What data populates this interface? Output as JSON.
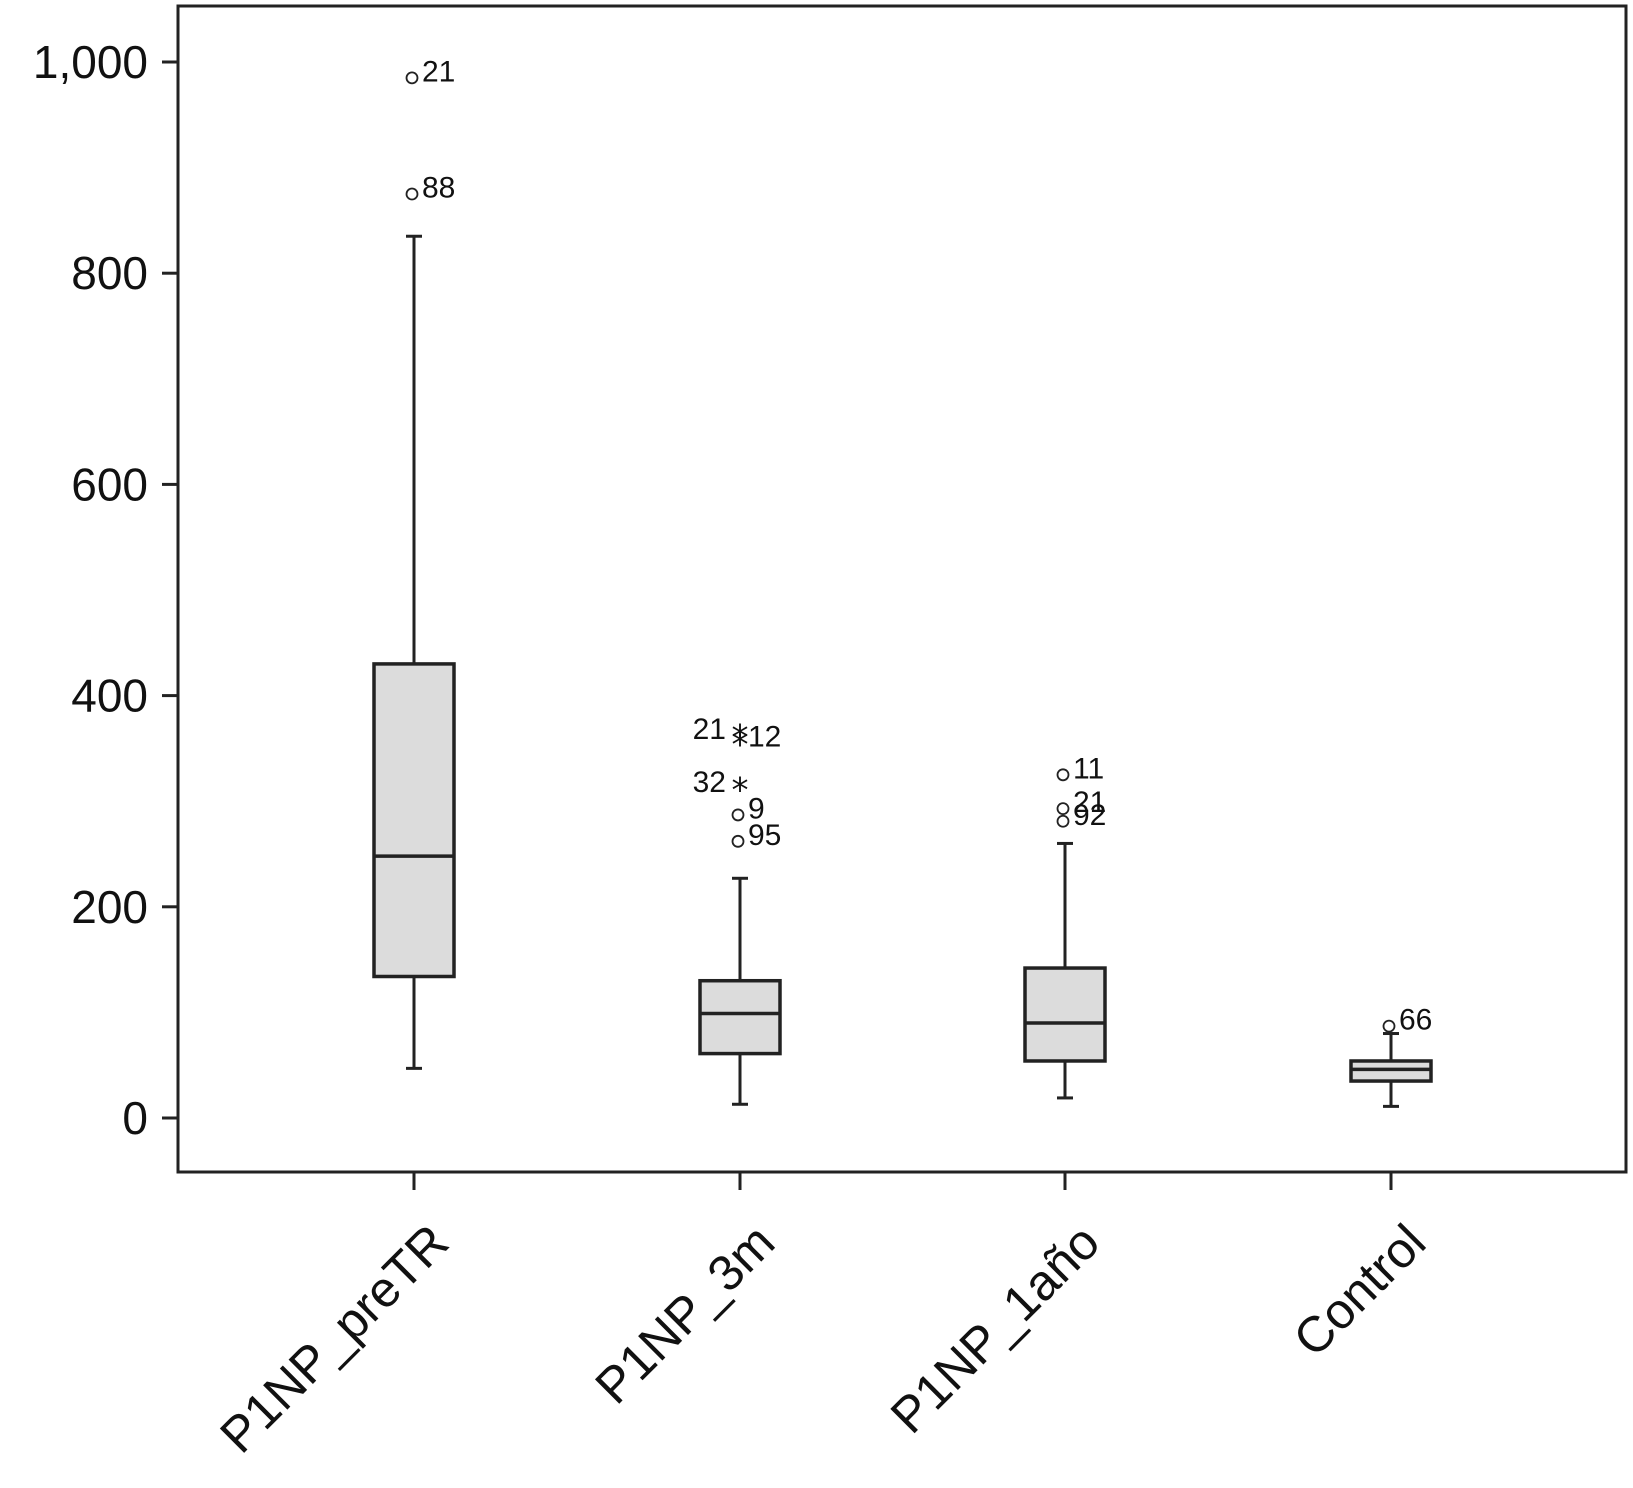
{
  "chart_data": {
    "type": "box",
    "title": "",
    "xlabel": "",
    "ylabel": "",
    "ylim": [
      -55,
      1055
    ],
    "yticks": [
      0,
      200,
      400,
      600,
      800,
      1000
    ],
    "ytick_labels": [
      "0",
      "200",
      "400",
      "600",
      "800",
      "1,000"
    ],
    "grid": false,
    "categories": [
      "P1NP_preTR",
      "P1NP_3m",
      "P1NP_1año",
      "Control"
    ],
    "boxes": [
      {
        "category": "P1NP_preTR",
        "whisker_low": 47,
        "q1": 134,
        "median": 248,
        "q3": 430,
        "whisker_high": 835
      },
      {
        "category": "P1NP_3m",
        "whisker_low": 13,
        "q1": 61,
        "median": 99,
        "q3": 130,
        "whisker_high": 227
      },
      {
        "category": "P1NP_1año",
        "whisker_low": 19,
        "q1": 54,
        "median": 90,
        "q3": 142,
        "whisker_high": 260
      },
      {
        "category": "Control",
        "whisker_low": 11,
        "q1": 35,
        "median": 46,
        "q3": 54,
        "whisker_high": 80
      }
    ],
    "outliers": [
      {
        "category": "P1NP_preTR",
        "value": 985,
        "label": "21",
        "marker": "circle"
      },
      {
        "category": "P1NP_preTR",
        "value": 875,
        "label": "88",
        "marker": "circle"
      },
      {
        "category": "P1NP_3m",
        "value": 362,
        "label": "21",
        "marker": "star",
        "label_side": "left"
      },
      {
        "category": "P1NP_3m",
        "value": 355,
        "label": "12",
        "marker": "star"
      },
      {
        "category": "P1NP_3m",
        "value": 312,
        "label": "32",
        "marker": "star",
        "label_side": "left"
      },
      {
        "category": "P1NP_3m",
        "value": 287,
        "label": "9",
        "marker": "circle"
      },
      {
        "category": "P1NP_3m",
        "value": 262,
        "label": "95",
        "marker": "circle"
      },
      {
        "category": "P1NP_1año",
        "value": 325,
        "label": "11",
        "marker": "circle"
      },
      {
        "category": "P1NP_1año",
        "value": 293,
        "label": "21",
        "marker": "circle"
      },
      {
        "category": "P1NP_1año",
        "value": 281,
        "label": "92",
        "marker": "circle"
      },
      {
        "category": "Control",
        "value": 87,
        "label": "66",
        "marker": "circle"
      }
    ]
  }
}
